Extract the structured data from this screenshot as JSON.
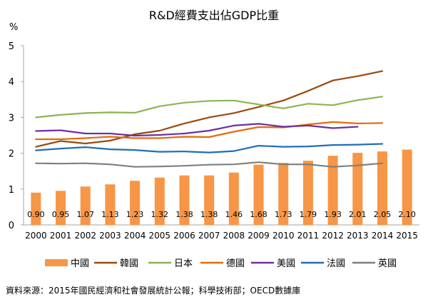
{
  "chart_data": {
    "type": "bar+line",
    "title": "R&D經費支出佔GDP比重",
    "ylabel": "%",
    "ylim": [
      0,
      5
    ],
    "yticks": [
      "0",
      "1",
      "2",
      "3",
      "4",
      "5"
    ],
    "grid": false,
    "legend_position": "bottom",
    "categories": [
      "2000",
      "2001",
      "2002",
      "2003",
      "2004",
      "2005",
      "2006",
      "2007",
      "2008",
      "2009",
      "2010",
      "2011",
      "2012",
      "2013",
      "2014",
      "2015"
    ],
    "bar_series": {
      "name": "中國",
      "color": "#F79646",
      "values": [
        0.9,
        0.95,
        1.07,
        1.13,
        1.23,
        1.32,
        1.38,
        1.38,
        1.46,
        1.68,
        1.73,
        1.79,
        1.93,
        2.01,
        2.05,
        2.1
      ],
      "labels": [
        "0.90",
        "0.95",
        "1.07",
        "1.13",
        "1.23",
        "1.32",
        "1.38",
        "1.38",
        "1.46",
        "1.68",
        "1.73",
        "1.79",
        "1.93",
        "2.01",
        "2.05",
        "2.10"
      ]
    },
    "line_series": [
      {
        "name": "韓國",
        "color": "#9A4A0E",
        "values": [
          2.18,
          2.34,
          2.27,
          2.35,
          2.53,
          2.63,
          2.83,
          3.0,
          3.12,
          3.29,
          3.47,
          3.74,
          4.03,
          4.15,
          4.29,
          null
        ]
      },
      {
        "name": "日本",
        "color": "#8DB451",
        "values": [
          3.0,
          3.07,
          3.12,
          3.14,
          3.13,
          3.31,
          3.41,
          3.46,
          3.47,
          3.36,
          3.25,
          3.38,
          3.34,
          3.48,
          3.58,
          null
        ]
      },
      {
        "name": "德國",
        "color": "#E46C0A",
        "values": [
          2.39,
          2.39,
          2.42,
          2.46,
          2.42,
          2.42,
          2.46,
          2.45,
          2.6,
          2.73,
          2.72,
          2.8,
          2.87,
          2.83,
          2.84,
          null
        ]
      },
      {
        "name": "美國",
        "color": "#7030A0",
        "values": [
          2.62,
          2.64,
          2.55,
          2.55,
          2.49,
          2.51,
          2.55,
          2.63,
          2.77,
          2.82,
          2.74,
          2.77,
          2.7,
          2.74,
          null,
          null
        ]
      },
      {
        "name": "法國",
        "color": "#1F6FB5",
        "values": [
          2.08,
          2.13,
          2.17,
          2.11,
          2.09,
          2.04,
          2.05,
          2.02,
          2.06,
          2.21,
          2.18,
          2.19,
          2.23,
          2.24,
          2.26,
          null
        ]
      },
      {
        "name": "英國",
        "color": "#7F7F7F",
        "values": [
          1.72,
          1.71,
          1.72,
          1.69,
          1.62,
          1.63,
          1.65,
          1.68,
          1.69,
          1.75,
          1.69,
          1.69,
          1.62,
          1.66,
          1.72,
          null
        ]
      }
    ],
    "legend": [
      "中國",
      "韓國",
      "日本",
      "德國",
      "美國",
      "法國",
      "英國"
    ]
  },
  "source_note": "資料來源：2015年國民經濟和社會發展統計公報；科學技術部；OECD數據庫"
}
